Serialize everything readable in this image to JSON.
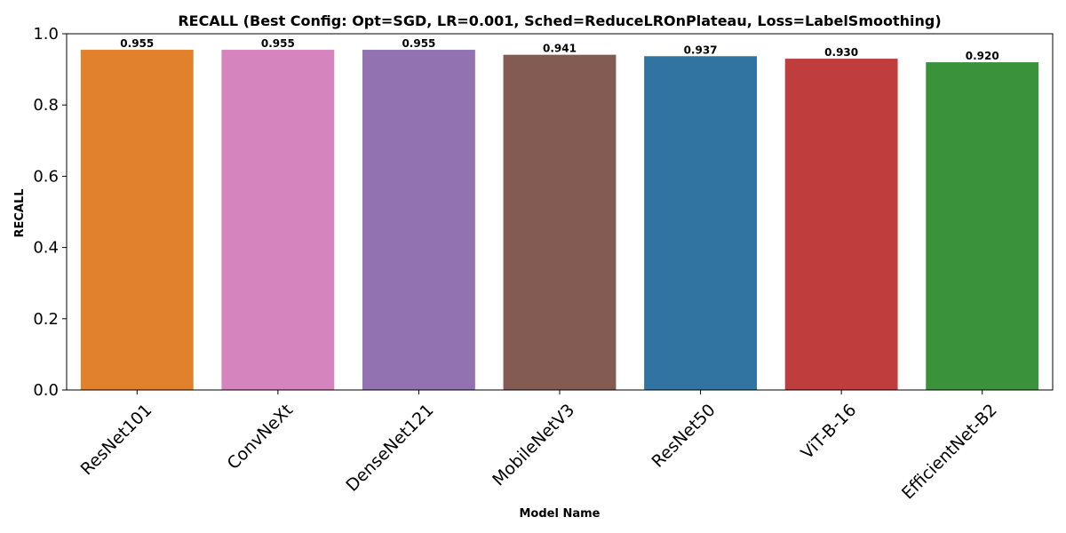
{
  "chart_data": {
    "type": "bar",
    "title": "RECALL (Best Config: Opt=SGD, LR=0.001, Sched=ReduceLROnPlateau, Loss=LabelSmoothing)",
    "xlabel": "Model Name",
    "ylabel": "RECALL",
    "categories": [
      "ResNet101",
      "ConvNeXt",
      "DenseNet121",
      "MobileNetV3",
      "ResNet50",
      "ViT-B-16",
      "EfficientNet-B2"
    ],
    "values": [
      0.955,
      0.955,
      0.955,
      0.941,
      0.937,
      0.93,
      0.92
    ],
    "data_labels": [
      "0.955",
      "0.955",
      "0.955",
      "0.941",
      "0.937",
      "0.930",
      "0.920"
    ],
    "colors": [
      "#e1812c",
      "#d684bd",
      "#9372b2",
      "#845b53",
      "#3274a1",
      "#c03d3e",
      "#3a923a"
    ],
    "ylim": [
      0,
      1.0
    ],
    "yticks": [
      0.0,
      0.2,
      0.4,
      0.6,
      0.8,
      1.0
    ],
    "ytick_labels": [
      "0.0",
      "0.2",
      "0.4",
      "0.6",
      "0.8",
      "1.0"
    ],
    "grid": false,
    "legend": "none"
  }
}
